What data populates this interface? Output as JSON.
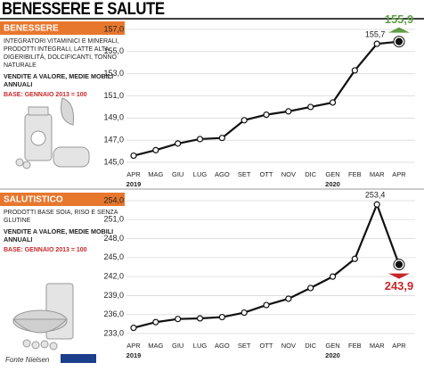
{
  "title": "BENESSERE E SALUTE",
  "source": "Fonte Nielsen",
  "chart_data": [
    {
      "type": "line",
      "tag": "BENESSERE",
      "description": "INTEGRATORI VITAMINICI E MINERALI, PRODOTTI INTEGRALI, LATTE ALTA DIGERIBILITÀ, DOLCIFICANTI, TONNO NATURALE",
      "measure": "VENDITE A VALORE, MEDIE MOBILI ANNUALI",
      "base": "BASE: GENNAIO 2013 = 100",
      "categories": [
        "APR",
        "MAG",
        "GIU",
        "LUG",
        "AGO",
        "SET",
        "OTT",
        "NOV",
        "DIC",
        "GEN",
        "FEB",
        "MAR",
        "APR"
      ],
      "year_labels": [
        "2019",
        null,
        null,
        null,
        null,
        null,
        null,
        null,
        null,
        "2020",
        null,
        null,
        null
      ],
      "values": [
        145.6,
        146.1,
        146.7,
        147.1,
        147.2,
        148.8,
        149.3,
        149.6,
        150.0,
        150.4,
        153.3,
        155.7,
        155.9
      ],
      "value_labels": [
        null,
        null,
        null,
        null,
        null,
        null,
        null,
        null,
        null,
        null,
        null,
        "155,7",
        "155,9"
      ],
      "ylim": [
        145,
        157
      ],
      "yticks": [
        {
          "value": 145,
          "label": "145,0"
        },
        {
          "value": 147,
          "label": "147,0"
        },
        {
          "value": 149,
          "label": "149,0"
        },
        {
          "value": 151,
          "label": "151,0"
        },
        {
          "value": 153,
          "label": "153,0"
        },
        {
          "value": 155,
          "label": "155,0"
        },
        {
          "value": 157,
          "label": "157,0"
        }
      ],
      "grid": true,
      "color": "#111111",
      "highlight_color": "#5e9e45"
    },
    {
      "type": "line",
      "tag": "SALUTISTICO",
      "description": "PRODOTTI BASE SOIA, RISO E SENZA GLUTINE",
      "measure": "VENDITE A VALORE, MEDIE MOBILI ANNUALI",
      "base": "BASE: GENNAIO 2013 = 100",
      "categories": [
        "APR",
        "MAG",
        "GIU",
        "LUG",
        "AGO",
        "SET",
        "OTT",
        "NOV",
        "DIC",
        "GEN",
        "FEB",
        "MAR",
        "APR"
      ],
      "year_labels": [
        "2019",
        null,
        null,
        null,
        null,
        null,
        null,
        null,
        null,
        "2020",
        null,
        null,
        null
      ],
      "values": [
        233.9,
        234.8,
        235.3,
        235.4,
        235.6,
        236.3,
        237.5,
        238.5,
        240.2,
        242.0,
        244.8,
        253.4,
        243.9
      ],
      "value_labels": [
        null,
        null,
        null,
        null,
        null,
        null,
        null,
        null,
        null,
        null,
        null,
        "253,4",
        "243,9"
      ],
      "ylim": [
        233,
        254
      ],
      "yticks": [
        {
          "value": 233,
          "label": "233,0"
        },
        {
          "value": 236,
          "label": "236,0"
        },
        {
          "value": 239,
          "label": "239,0"
        },
        {
          "value": 242,
          "label": "242,0"
        },
        {
          "value": 245,
          "label": "245,0"
        },
        {
          "value": 248,
          "label": "248,0"
        },
        {
          "value": 251,
          "label": "251,0"
        },
        {
          "value": 254,
          "label": "254,0"
        }
      ],
      "grid": true,
      "color": "#111111",
      "highlight_color": "#c62828"
    }
  ]
}
